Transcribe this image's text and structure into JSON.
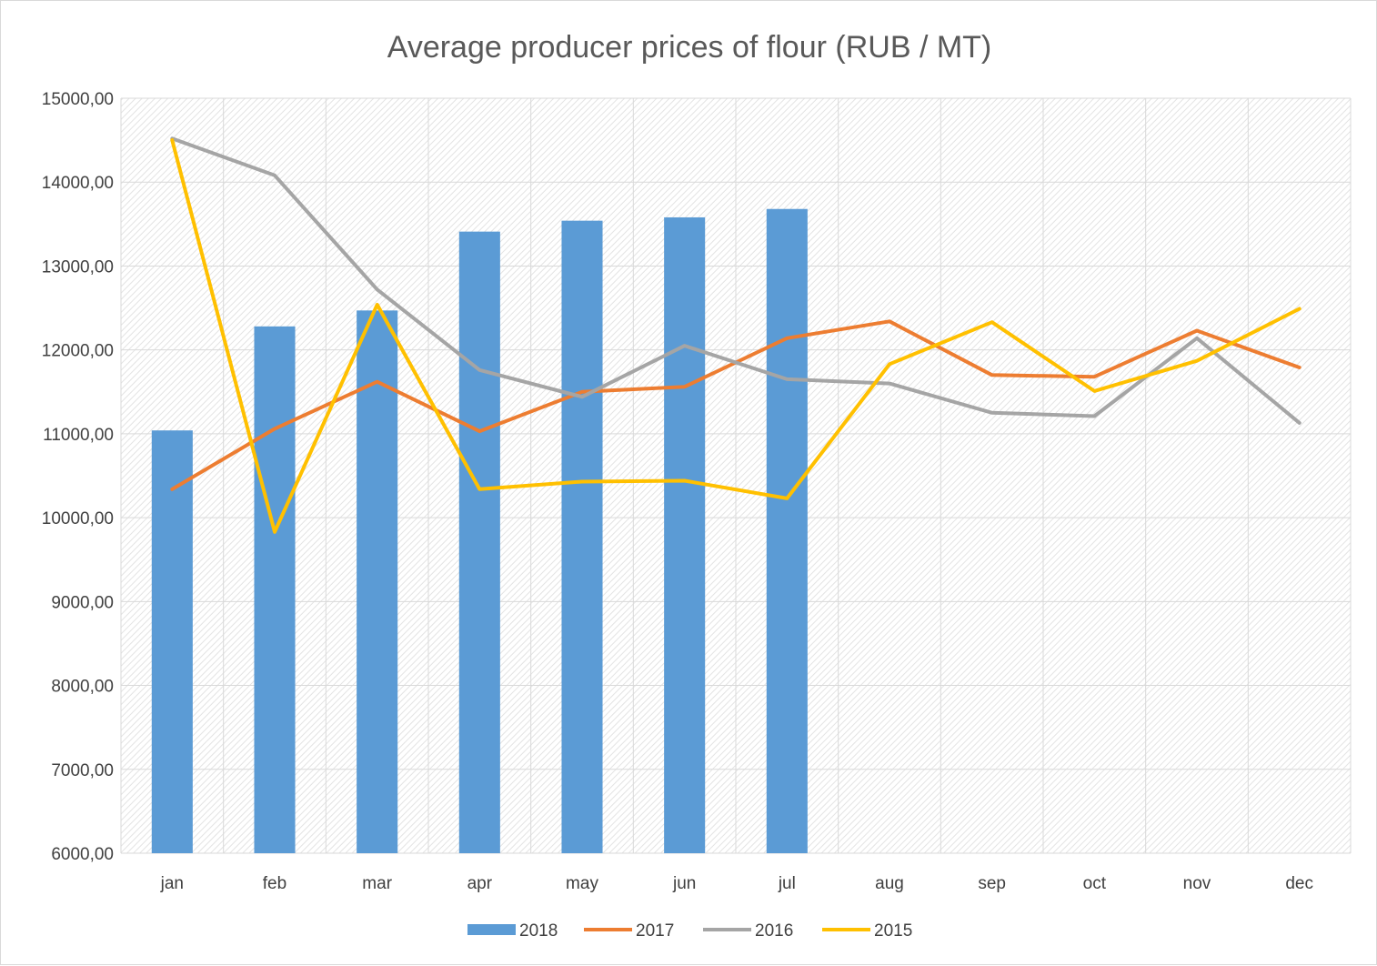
{
  "chart_data": {
    "type": "bar",
    "title": "Average producer prices of flour (RUB / MT)",
    "xlabel": "",
    "ylabel": "",
    "categories": [
      "jan",
      "feb",
      "mar",
      "apr",
      "may",
      "jun",
      "jul",
      "aug",
      "sep",
      "oct",
      "nov",
      "dec"
    ],
    "ylim": [
      6000,
      15000
    ],
    "yticks": [
      6000,
      7000,
      8000,
      9000,
      10000,
      11000,
      12000,
      13000,
      14000,
      15000
    ],
    "ytick_labels": [
      "6000,00",
      "7000,00",
      "8000,00",
      "9000,00",
      "10000,00",
      "11000,00",
      "12000,00",
      "13000,00",
      "14000,00",
      "15000,00"
    ],
    "grid": true,
    "legend_position": "bottom",
    "series": [
      {
        "name": "2018",
        "type": "bar",
        "color": "#5b9bd5",
        "values": [
          11040,
          12280,
          12470,
          13410,
          13540,
          13580,
          13680,
          null,
          null,
          null,
          null,
          null
        ]
      },
      {
        "name": "2017",
        "type": "line",
        "color": "#ed7d31",
        "values": [
          10340,
          11060,
          11620,
          11030,
          11500,
          11560,
          12140,
          12340,
          11700,
          11680,
          12230,
          11790
        ]
      },
      {
        "name": "2016",
        "type": "line",
        "color": "#a5a5a5",
        "values": [
          14520,
          14080,
          12720,
          11760,
          11440,
          12050,
          11650,
          11600,
          11250,
          11210,
          12140,
          11130
        ]
      },
      {
        "name": "2015",
        "type": "line",
        "color": "#ffc000",
        "values": [
          14500,
          9830,
          12540,
          10340,
          10430,
          10440,
          10230,
          11830,
          12330,
          11510,
          11870,
          12490
        ]
      }
    ]
  }
}
